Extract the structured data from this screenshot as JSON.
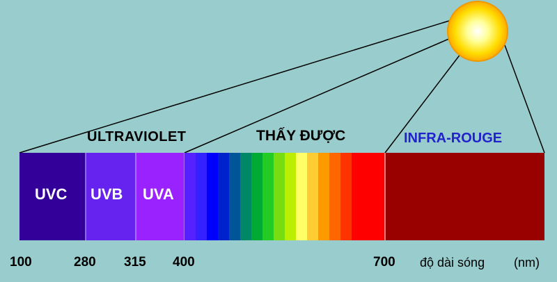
{
  "regions": {
    "ultraviolet": "ULTRAVIOLET",
    "visible": "THẤY ĐƯỢC",
    "infrared": "INFRA-ROUGE"
  },
  "bands": [
    {
      "label": "UVC",
      "color": "#330099"
    },
    {
      "label": "UVB",
      "color": "#6622ee"
    },
    {
      "label": "UVA",
      "color": "#9922ff"
    }
  ],
  "infrared_color": "#990000",
  "visible_colors": [
    "#5522ff",
    "#3322ff",
    "#0000ff",
    "#0022cc",
    "#005599",
    "#008866",
    "#00aa33",
    "#22cc22",
    "#77dd11",
    "#bbee00",
    "#ffff66",
    "#ffcc33",
    "#ff9900",
    "#ff6600",
    "#ff3300",
    "#ff0000"
  ],
  "ticks": [
    "100",
    "280",
    "315",
    "400",
    "700"
  ],
  "axis_label": "độ dài sóng",
  "unit": "(nm)"
}
